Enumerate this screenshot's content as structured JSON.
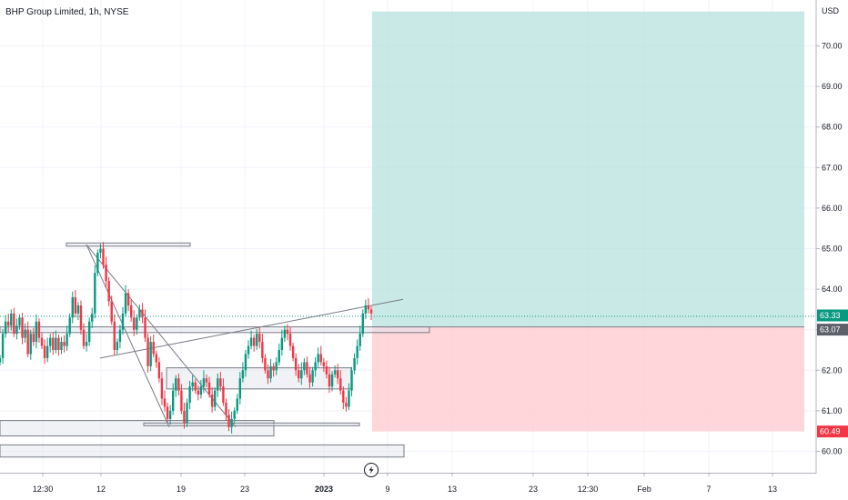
{
  "chart_data": {
    "type": "candlestick",
    "title": "BHP Group Limited, 1h, NYSE",
    "currency": "USD",
    "y_axis": {
      "ticks": [
        "60.00",
        "61.00",
        "62.00",
        "63.00",
        "64.00",
        "65.00",
        "66.00",
        "67.00",
        "68.00",
        "69.00",
        "70.00"
      ],
      "ylim": [
        59.5,
        71.0
      ]
    },
    "x_axis": {
      "ticks": [
        "12:30",
        "12",
        "19",
        "23",
        "2023",
        "9",
        "13",
        "23",
        "12:30",
        "Feb",
        "7",
        "13"
      ],
      "bold_ticks": [
        "2023"
      ]
    },
    "last_price": 63.33,
    "price_labels": [
      {
        "text": "63.33",
        "value": 63.33,
        "color": "#089981"
      },
      {
        "text": "63.07",
        "value": 63.07,
        "color": "#5d606b"
      },
      {
        "text": "60.49",
        "value": 60.49,
        "color": "#f23645"
      }
    ],
    "position": {
      "entry": 63.07,
      "target": 70.85,
      "stop": 60.49,
      "profit_color": "#b2dfdb",
      "loss_color": "#ffcdd2"
    },
    "candles_close": [
      62.3,
      62.9,
      63.2,
      63.1,
      63.4,
      62.9,
      63.1,
      63.3,
      62.8,
      63.0,
      62.4,
      62.9,
      62.7,
      63.2,
      62.8,
      62.6,
      62.3,
      62.6,
      62.8,
      62.5,
      62.8,
      62.5,
      62.7,
      62.6,
      62.9,
      63.3,
      63.8,
      63.4,
      63.6,
      63.0,
      62.6,
      62.7,
      63.2,
      63.4,
      64.4,
      64.9,
      65.0,
      64.6,
      64.2,
      63.7,
      63.2,
      62.5,
      62.7,
      63.0,
      63.4,
      63.9,
      63.6,
      63.3,
      63.0,
      63.3,
      63.5,
      63.3,
      62.8,
      62.1,
      62.7,
      62.4,
      62.2,
      61.8,
      61.3,
      61.1,
      60.8,
      61.0,
      61.5,
      61.8,
      61.5,
      61.0,
      60.7,
      61.2,
      61.6,
      61.7,
      61.5,
      61.4,
      61.6,
      61.8,
      61.7,
      61.4,
      61.1,
      61.5,
      61.8,
      61.6,
      61.2,
      60.9,
      60.6,
      60.8,
      61.0,
      61.3,
      61.8,
      62.0,
      62.4,
      62.6,
      62.8,
      62.6,
      62.9,
      62.7,
      62.3,
      62.0,
      61.8,
      62.1,
      62.0,
      62.2,
      62.5,
      62.8,
      63.0,
      62.9,
      62.6,
      62.3,
      62.0,
      61.8,
      62.0,
      62.2,
      61.9,
      61.7,
      62.0,
      62.2,
      62.4,
      62.2,
      62.1,
      61.9,
      61.6,
      61.9,
      62.0,
      61.8,
      61.5,
      61.2,
      61.1,
      61.5,
      62.0,
      62.3,
      62.6,
      62.9,
      63.4,
      63.6,
      63.5,
      63.4
    ],
    "candles_x_range": [
      0,
      408
    ],
    "annotations": {
      "rectangles": [
        {
          "x0": 73,
          "x1": 209,
          "y0": 65.06,
          "y1": 65.14
        },
        {
          "x0": 0,
          "x1": 472,
          "y0": 62.93,
          "y1": 63.07
        },
        {
          "x0": 183,
          "x1": 386,
          "y0": 61.54,
          "y1": 62.06
        },
        {
          "x0": 0,
          "x1": 301,
          "y0": 60.38,
          "y1": 60.76
        },
        {
          "x0": 158,
          "x1": 395,
          "y0": 60.64,
          "y1": 60.7
        },
        {
          "x0": 0,
          "x1": 444,
          "y0": 59.86,
          "y1": 60.16
        }
      ],
      "trendlines": [
        {
          "x0": 95,
          "v0": 65.1,
          "x1": 186,
          "v1": 60.6
        },
        {
          "x0": 95,
          "v0": 65.1,
          "x1": 259,
          "v1": 60.6
        },
        {
          "x0": 110,
          "v0": 62.3,
          "x1": 443,
          "v1": 63.75
        }
      ]
    }
  }
}
